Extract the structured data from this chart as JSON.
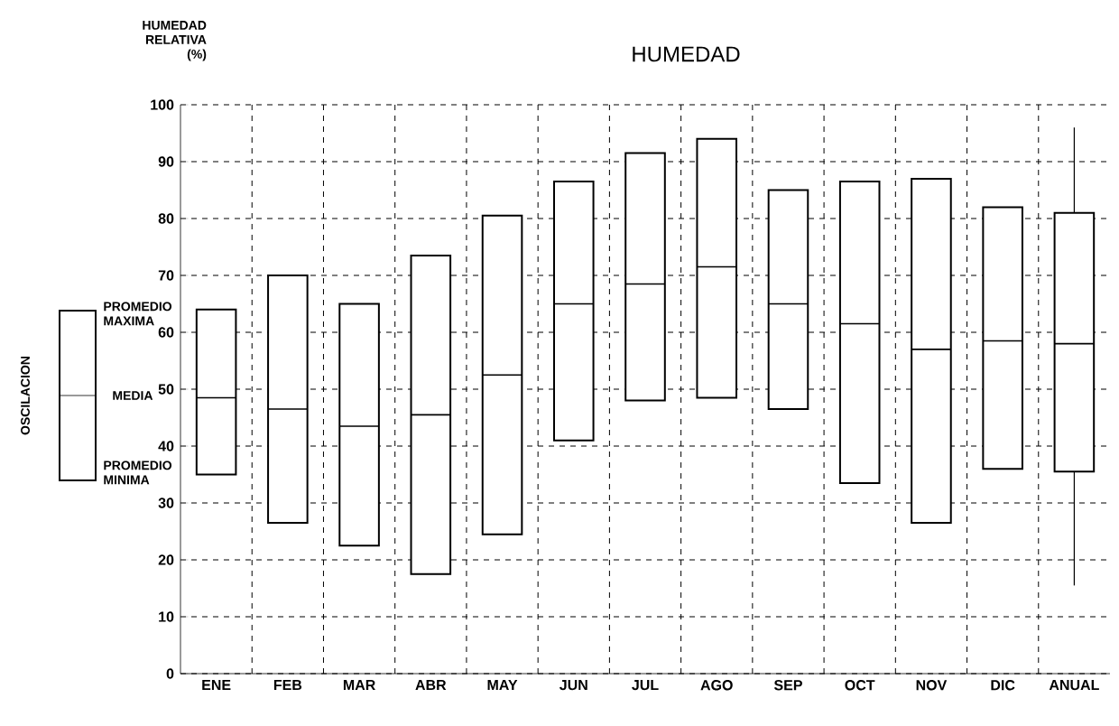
{
  "chart_data": {
    "type": "box",
    "title": "HUMEDAD",
    "ylabel": "HUMEDAD RELATIVA (%)",
    "categories": [
      "ENE",
      "FEB",
      "MAR",
      "ABR",
      "MAY",
      "JUN",
      "JUL",
      "AGO",
      "SEP",
      "OCT",
      "NOV",
      "DIC",
      "ANUAL"
    ],
    "boxes": [
      {
        "low": 35,
        "q1": 35,
        "median": 48.5,
        "q3": 64,
        "high": 64
      },
      {
        "low": 26.5,
        "q1": 26.5,
        "median": 46.5,
        "q3": 70,
        "high": 70
      },
      {
        "low": 22.5,
        "q1": 22.5,
        "median": 43.5,
        "q3": 65,
        "high": 65
      },
      {
        "low": 17.5,
        "q1": 17.5,
        "median": 45.5,
        "q3": 73.5,
        "high": 73.5
      },
      {
        "low": 24.5,
        "q1": 24.5,
        "median": 52.5,
        "q3": 80.5,
        "high": 80.5
      },
      {
        "low": 41,
        "q1": 41,
        "median": 65,
        "q3": 86.5,
        "high": 86.5
      },
      {
        "low": 48,
        "q1": 48,
        "median": 68.5,
        "q3": 91.5,
        "high": 91.5
      },
      {
        "low": 48.5,
        "q1": 48.5,
        "median": 71.5,
        "q3": 94,
        "high": 94
      },
      {
        "low": 46.5,
        "q1": 46.5,
        "median": 65,
        "q3": 85,
        "high": 85
      },
      {
        "low": 33.5,
        "q1": 33.5,
        "median": 61.5,
        "q3": 86.5,
        "high": 86.5
      },
      {
        "low": 26.5,
        "q1": 26.5,
        "median": 57,
        "q3": 87,
        "high": 87
      },
      {
        "low": 36,
        "q1": 36,
        "median": 58.5,
        "q3": 82,
        "high": 82
      },
      {
        "low": 15.5,
        "q1": 35.5,
        "median": 58,
        "q3": 81,
        "high": 96
      }
    ],
    "color": "#000000",
    "ylim": [
      0,
      100
    ],
    "yticks": [
      0,
      10,
      20,
      30,
      40,
      50,
      60,
      70,
      80,
      90,
      100
    ],
    "grid": true,
    "annotations": [
      "OSCILACION",
      "PROMEDIO MAXIMA",
      "MEDIA",
      "PROMEDIO MINIMA"
    ]
  }
}
